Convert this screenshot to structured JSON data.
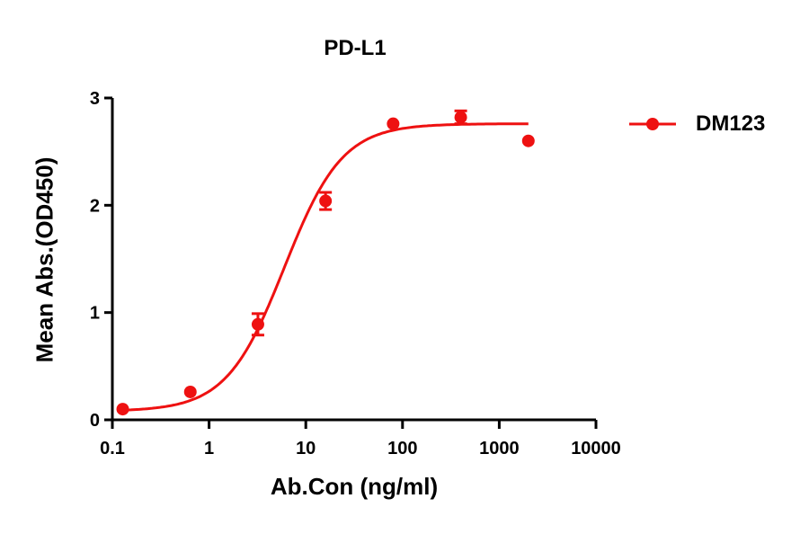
{
  "chart_data": {
    "type": "line",
    "title": "PD-L1",
    "xlabel": "Ab.Con (ng/ml)",
    "ylabel": "Mean Abs.(OD450)",
    "xscale": "log",
    "xlim": [
      0.1,
      10000
    ],
    "ylim": [
      0,
      3
    ],
    "x_ticks": [
      "0.1",
      "1",
      "10",
      "100",
      "1000",
      "10000"
    ],
    "y_ticks": [
      "0",
      "1",
      "2",
      "3"
    ],
    "grid": false,
    "legend_position": "right",
    "series": [
      {
        "name": "DM123",
        "color": "#ee1111",
        "x": [
          0.128,
          0.64,
          3.2,
          16,
          80,
          400,
          2000
        ],
        "y": [
          0.1,
          0.26,
          0.89,
          2.04,
          2.76,
          2.82,
          2.6
        ],
        "error": [
          0.02,
          0.02,
          0.1,
          0.08,
          0.02,
          0.06,
          0.02
        ],
        "fit": "4PL sigmoid",
        "fit_params": {
          "bottom": 0.08,
          "top": 2.76,
          "ec50": 6.0,
          "hill": 1.45
        }
      }
    ]
  }
}
